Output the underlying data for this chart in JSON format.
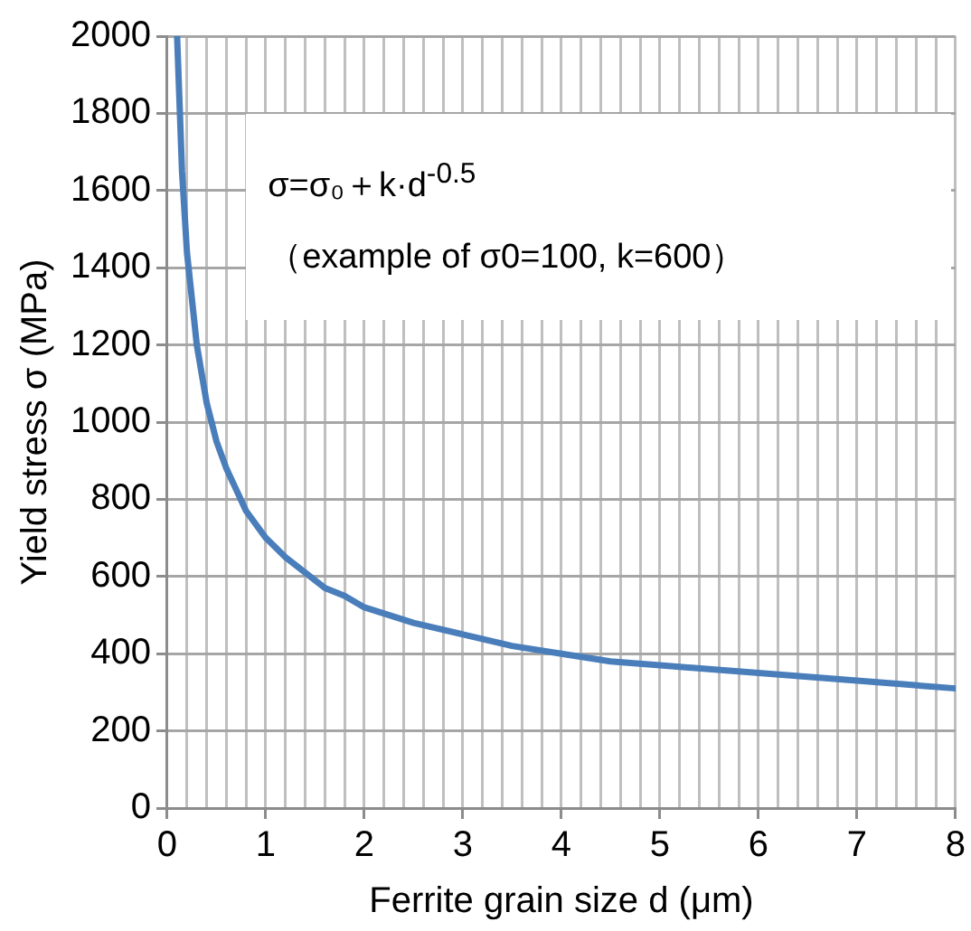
{
  "chart_data": {
    "type": "line",
    "xlabel": "Ferrite grain size d (μm)",
    "ylabel": "Yield stress σ (MPa)",
    "x": [
      0.1,
      0.15,
      0.2,
      0.3,
      0.4,
      0.5,
      0.6,
      0.8,
      1.0,
      1.2,
      1.4,
      1.6,
      1.8,
      2.0,
      2.5,
      3.0,
      3.5,
      4.0,
      4.5,
      5.0,
      5.5,
      6.0,
      6.5,
      7.0,
      7.5,
      8.0
    ],
    "series": [
      {
        "color": "#4a7ebb",
        "values": [
          2000,
          1650,
          1440,
          1200,
          1050,
          950,
          880,
          770,
          700,
          650,
          610,
          570,
          550,
          520,
          480,
          450,
          420,
          400,
          380,
          370,
          360,
          350,
          340,
          330,
          320,
          310
        ]
      }
    ],
    "xlim": [
      0,
      8
    ],
    "xticks": [
      0,
      {
        "value": 0.2,
        "label": null
      },
      {
        "value": 0.4,
        "label": null
      },
      {
        "value": 0.6,
        "label": null
      },
      {
        "value": 0.8,
        "label": null
      },
      1,
      {
        "value": 1.2,
        "label": null
      },
      {
        "value": 1.4,
        "label": null
      },
      {
        "value": 1.6,
        "label": null
      },
      {
        "value": 1.8,
        "label": null
      },
      2,
      {
        "value": 2.2,
        "label": null
      },
      {
        "value": 2.4,
        "label": null
      },
      {
        "value": 2.6,
        "label": null
      },
      {
        "value": 2.8,
        "label": null
      },
      3,
      {
        "value": 3.2,
        "label": null
      },
      {
        "value": 3.4,
        "label": null
      },
      {
        "value": 3.6,
        "label": null
      },
      {
        "value": 3.8,
        "label": null
      },
      4,
      {
        "value": 4.2,
        "label": null
      },
      {
        "value": 4.4,
        "label": null
      },
      {
        "value": 4.6,
        "label": null
      },
      {
        "value": 4.8,
        "label": null
      },
      5,
      {
        "value": 5.2,
        "label": null
      },
      {
        "value": 5.4,
        "label": null
      },
      {
        "value": 5.6,
        "label": null
      },
      {
        "value": 5.8,
        "label": null
      },
      6,
      {
        "value": 6.2,
        "label": null
      },
      {
        "value": 6.4,
        "label": null
      },
      {
        "value": 6.6,
        "label": null
      },
      {
        "value": 6.8,
        "label": null
      },
      7,
      {
        "value": 7.2,
        "label": null
      },
      {
        "value": 7.4,
        "label": null
      },
      {
        "value": 7.6,
        "label": null
      },
      {
        "value": 7.8,
        "label": null
      },
      8
    ],
    "ylim": [
      0,
      2000
    ],
    "yticks": [
      0,
      200,
      400,
      600,
      800,
      1000,
      1200,
      1400,
      1600,
      1800,
      2000
    ],
    "grid": true,
    "legend": false,
    "marker": "none",
    "line_style": "solid",
    "annotations": [
      "σ=σ₀＋k·d$^{-0.5}$",
      "（example of σ0=100,  k=600）"
    ]
  }
}
